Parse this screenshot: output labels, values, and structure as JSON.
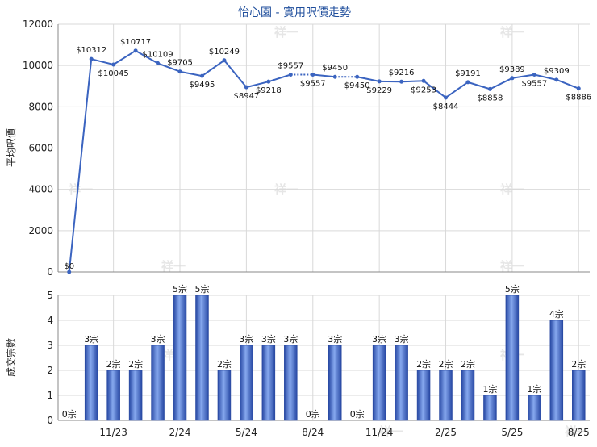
{
  "chart_data": [
    {
      "type": "line",
      "title": "怡心園 - 實用呎價走勢",
      "ylabel": "平均呎價",
      "ylim": [
        0,
        12000
      ],
      "yticks": [
        0,
        2000,
        4000,
        6000,
        8000,
        10000,
        12000
      ],
      "grid": true,
      "series": [
        {
          "values": [
            0,
            10312,
            10045,
            10717,
            10109,
            9705,
            9495,
            10249,
            8947,
            9218,
            9557,
            9557,
            9450,
            9450,
            9229,
            9216,
            9253,
            8444,
            9191,
            8858,
            9389,
            9557,
            9309,
            8886
          ],
          "labels": [
            "$0",
            "$10312",
            "$10045",
            "$10717",
            "$10109",
            "$9705",
            "$9495",
            "$10249",
            "$8947",
            "$9218",
            "$9557",
            "$9557",
            "$9450",
            "$9450",
            "$9229",
            "$9216",
            "$9253",
            "$8444",
            "$9191",
            "$8858",
            "$9389",
            "$9557",
            "$9309",
            "$8886"
          ]
        }
      ]
    },
    {
      "type": "bar",
      "ylabel": "成交宗數",
      "ylim": [
        0,
        5
      ],
      "yticks": [
        0,
        1,
        2,
        3,
        4,
        5
      ],
      "categories": [
        "11/23",
        "2/24",
        "5/24",
        "8/24",
        "11/24",
        "2/25",
        "5/25",
        "8/25"
      ],
      "grid": true,
      "values": [
        0,
        3,
        2,
        2,
        3,
        5,
        5,
        2,
        3,
        3,
        3,
        0,
        3,
        0,
        3,
        3,
        2,
        2,
        2,
        1,
        5,
        1,
        4,
        2
      ],
      "labels": [
        "0宗",
        "3宗",
        "2宗",
        "2宗",
        "3宗",
        "5宗",
        "5宗",
        "2宗",
        "3宗",
        "3宗",
        "3宗",
        "0宗",
        "3宗",
        "0宗",
        "3宗",
        "3宗",
        "2宗",
        "2宗",
        "2宗",
        "1宗",
        "5宗",
        "1宗",
        "4宗",
        "2宗"
      ]
    }
  ],
  "watermark": "祥一",
  "colors": {
    "line": "#3b64c0",
    "bar_dark": "#2647a3",
    "bar_light": "#86a8ee",
    "grid": "#d9d9d9",
    "title": "#1f4e9c"
  }
}
